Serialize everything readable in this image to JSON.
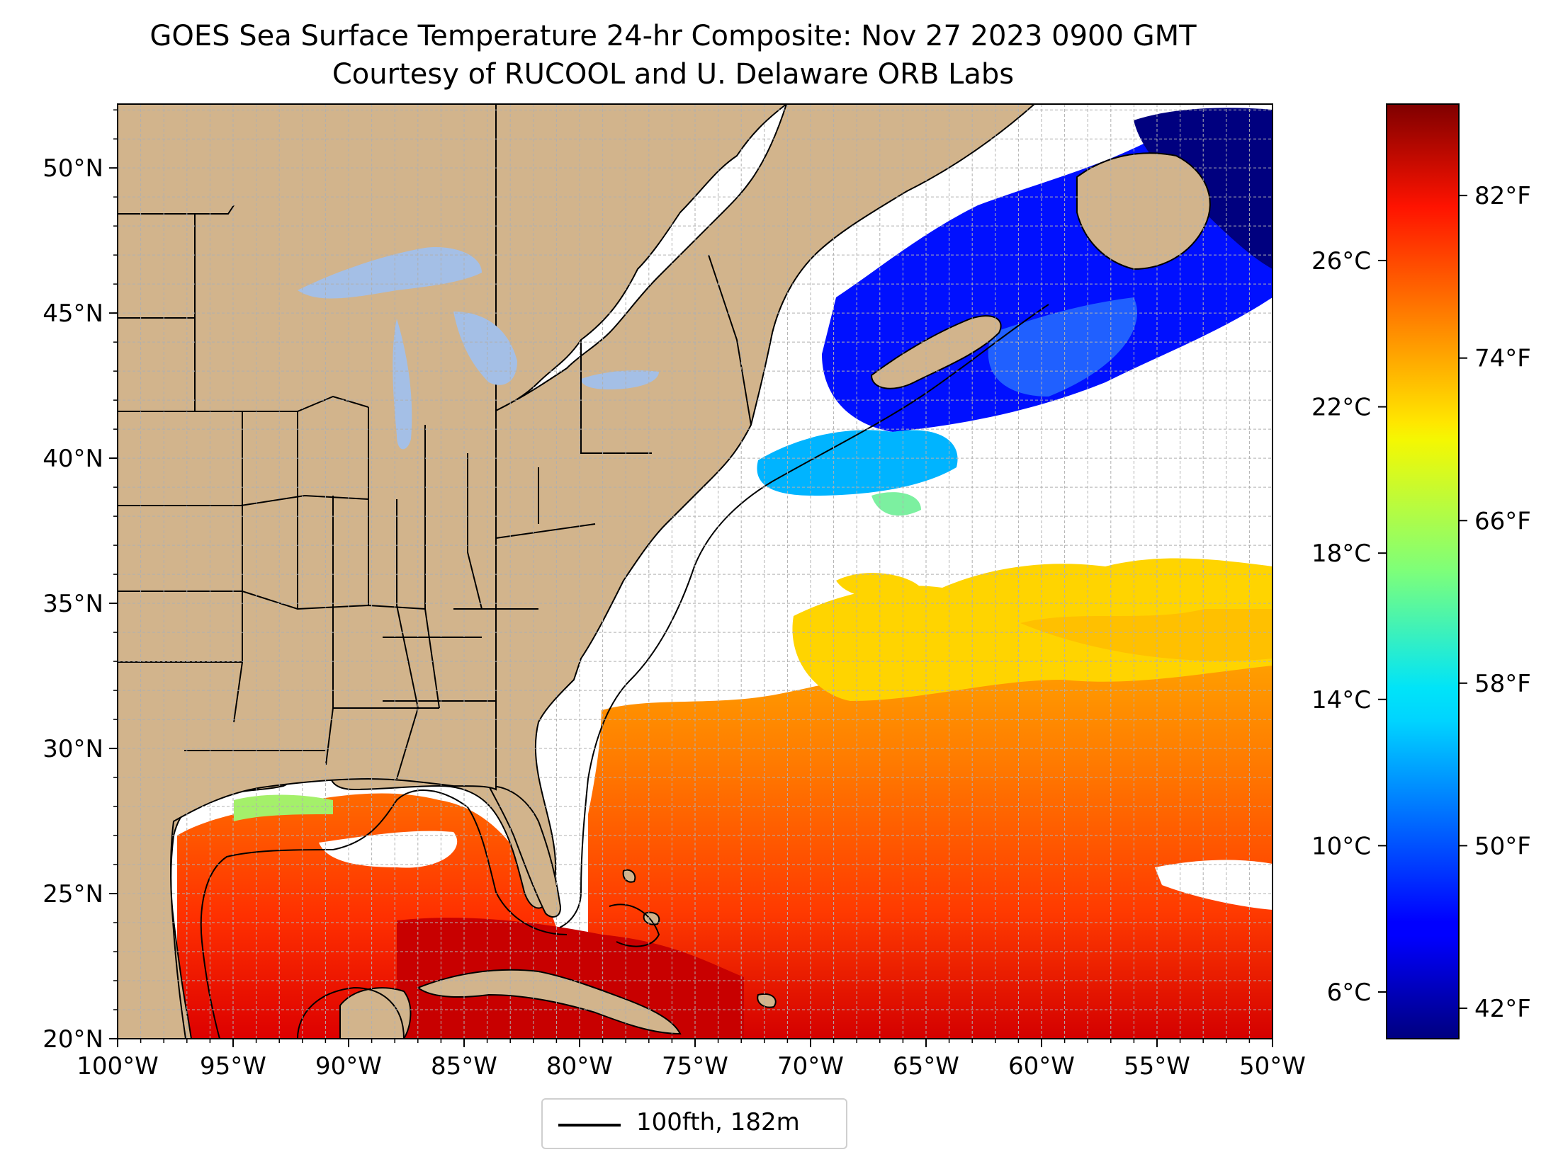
{
  "title": "GOES Sea Surface Temperature 24-hr Composite: Nov 27 2023 0900 GMT",
  "subtitle": "Courtesy of RUCOOL and U. Delaware ORB Labs",
  "map": {
    "extent_lon": [
      -100,
      -50
    ],
    "extent_lat": [
      20,
      52.2
    ],
    "lon_ticks": [
      "100°W",
      "95°W",
      "90°W",
      "85°W",
      "80°W",
      "75°W",
      "70°W",
      "65°W",
      "60°W",
      "55°W",
      "50°W"
    ],
    "lat_ticks": [
      "20°N",
      "25°N",
      "30°N",
      "35°N",
      "40°N",
      "45°N",
      "50°N"
    ],
    "land_color": "#d2b48c",
    "lake_color": "#a4bfe6",
    "grid": "dashed, 1° spacing",
    "contour": "100 fathom (182 m) isobath"
  },
  "colorbar": {
    "colormap": "jet",
    "celsius_ticks": [
      "26°C",
      "22°C",
      "18°C",
      "14°C",
      "10°C",
      "6°C"
    ],
    "fahrenheit_ticks": [
      "82°F",
      "74°F",
      "66°F",
      "58°F",
      "50°F",
      "42°F"
    ],
    "range_f": [
      40.5,
      86.5
    ]
  },
  "legend": {
    "label": "100fth, 182m",
    "line_color": "#000000"
  }
}
